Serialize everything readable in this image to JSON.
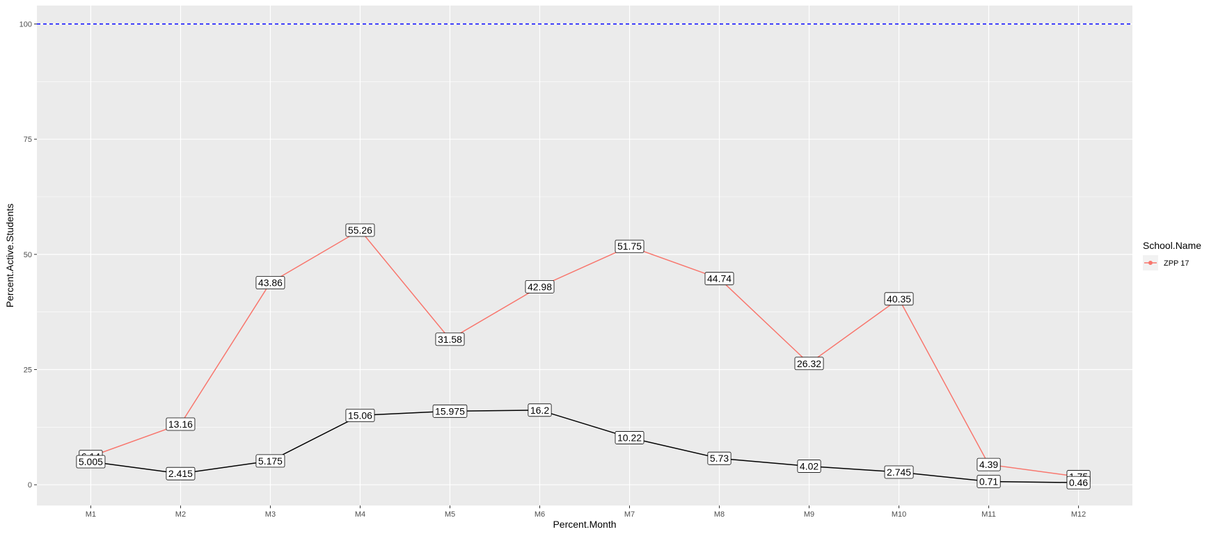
{
  "chart_data": {
    "type": "line",
    "xlabel": "Percent.Month",
    "ylabel": "Percent.Active.Students",
    "categories": [
      "M1",
      "M2",
      "M3",
      "M4",
      "M5",
      "M6",
      "M7",
      "M8",
      "M9",
      "M10",
      "M11",
      "M12"
    ],
    "ylim": [
      -4.5,
      104
    ],
    "yticks": [
      0,
      25,
      50,
      75,
      100
    ],
    "grid": true,
    "reference_line": {
      "y": 100,
      "color": "#0000ff",
      "style": "dashed"
    },
    "series": [
      {
        "name": "ZPP 17",
        "color": "#f8766d",
        "values": [
          6.14,
          13.16,
          43.86,
          55.26,
          31.58,
          42.98,
          51.75,
          44.74,
          26.32,
          40.35,
          4.39,
          1.75
        ],
        "labels": [
          "6.14",
          "13.16",
          "43.86",
          "55.26",
          "31.58",
          "42.98",
          "51.75",
          "44.74",
          "26.32",
          "40.35",
          "4.39",
          "1.75"
        ]
      },
      {
        "color": "#000000",
        "values": [
          5.005,
          2.415,
          5.175,
          15.06,
          15.975,
          16.2,
          10.22,
          5.73,
          4.02,
          2.745,
          0.71,
          0.46
        ],
        "labels": [
          "5.005",
          "2.415",
          "5.175",
          "15.06",
          "15.975",
          "16.2",
          "10.22",
          "5.73",
          "4.02",
          "2.745",
          "0.71",
          "0.46"
        ]
      }
    ],
    "legend": {
      "title": "School.Name",
      "entries": [
        "ZPP 17"
      ],
      "placement": "right"
    }
  }
}
